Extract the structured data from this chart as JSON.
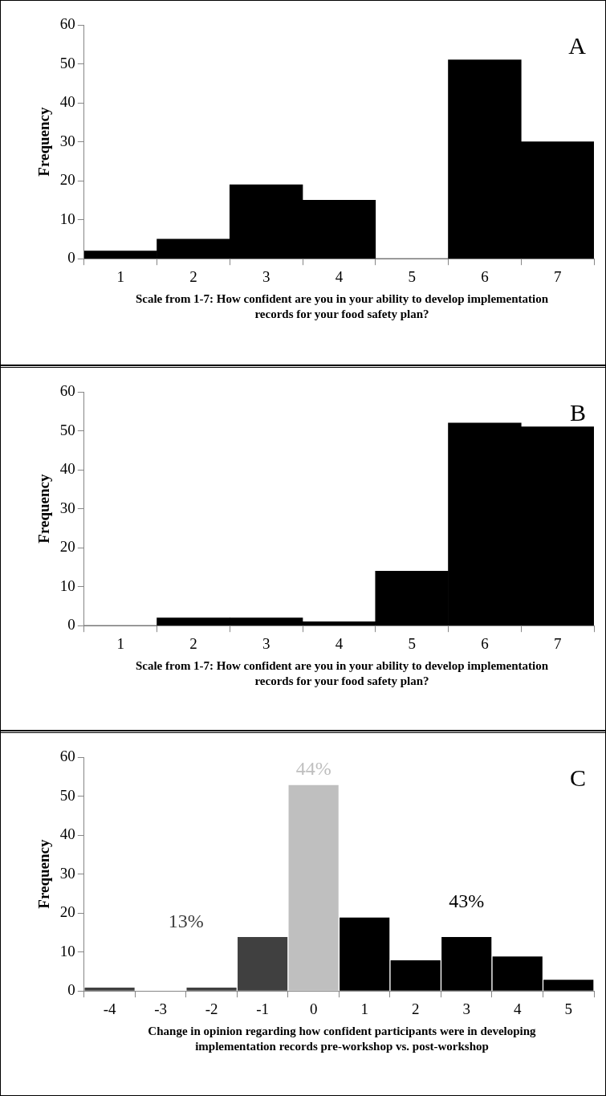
{
  "chart_data": [
    {
      "type": "bar",
      "categories": [
        "1",
        "2",
        "3",
        "4",
        "5",
        "6",
        "7"
      ],
      "values": [
        2,
        5,
        19,
        15,
        0,
        51,
        30
      ],
      "color": "#000000",
      "ylim": [
        0,
        60
      ],
      "yticks": [
        0,
        10,
        20,
        30,
        40,
        50,
        60
      ],
      "ylabel": "Frequency",
      "xlabel": "Scale from 1-7: How confident are you in your ability to develop implementation records for your food safety plan?",
      "annotations": [
        "A"
      ]
    },
    {
      "type": "bar",
      "categories": [
        "1",
        "2",
        "3",
        "4",
        "5",
        "6",
        "7"
      ],
      "values": [
        0,
        2,
        2,
        1,
        14,
        52,
        51
      ],
      "color": "#000000",
      "ylim": [
        0,
        60
      ],
      "yticks": [
        0,
        10,
        20,
        30,
        40,
        50,
        60
      ],
      "ylabel": "Frequency",
      "xlabel": "Scale from 1-7: How confident are you in your ability to develop implementation records for your food safety plan?",
      "annotations": [
        "B"
      ]
    },
    {
      "type": "bar",
      "categories": [
        "-4",
        "-3",
        "-2",
        "-1",
        "0",
        "1",
        "2",
        "3",
        "4",
        "5"
      ],
      "values": [
        1,
        0,
        1,
        14,
        53,
        19,
        8,
        14,
        9,
        3
      ],
      "colors": [
        "#404040",
        "#404040",
        "#404040",
        "#404040",
        "#bfbfbf",
        "#000000",
        "#000000",
        "#000000",
        "#000000",
        "#000000"
      ],
      "ylim": [
        0,
        60
      ],
      "yticks": [
        0,
        10,
        20,
        30,
        40,
        50,
        60
      ],
      "ylabel": "Frequency",
      "xlabel": "Change in opinion regarding how confident participants were in developing implementation records pre-workshop vs. post-workshop",
      "annotations": [
        "C",
        "13%",
        "44%",
        "43%"
      ]
    }
  ]
}
